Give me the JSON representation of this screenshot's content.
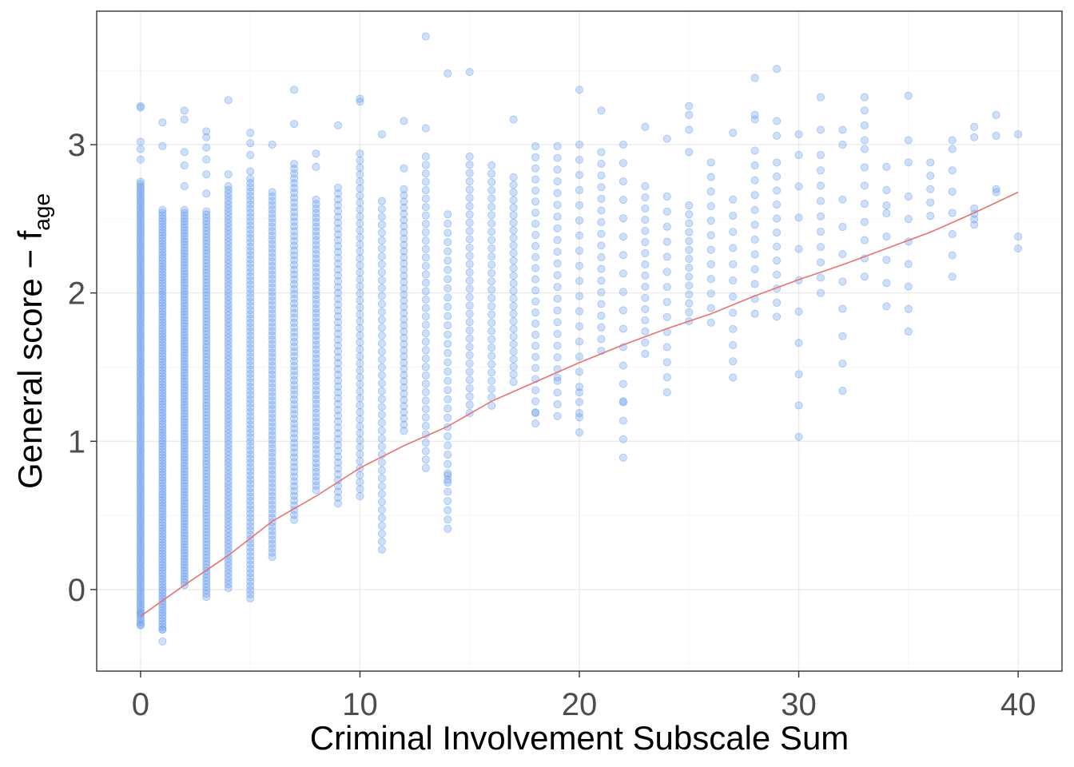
{
  "chart_data": {
    "type": "scatter",
    "xlabel": "Criminal Involvement Subscale Sum",
    "ylabel_main": "General score −  f",
    "ylabel_sub": "age",
    "xlim": [
      -2,
      42
    ],
    "ylim": [
      -0.55,
      3.9
    ],
    "x_ticks": [
      0,
      10,
      20,
      30,
      40
    ],
    "y_ticks": [
      0,
      1,
      2,
      3
    ],
    "x_tick_labels": [
      "0",
      "10",
      "20",
      "30",
      "40"
    ],
    "y_tick_labels": [
      "0",
      "1",
      "2",
      "3"
    ],
    "grid": true,
    "legend": "none",
    "point_color": "#6a9ff0",
    "curve_color": "#e8736c",
    "series": [
      {
        "kind": "points",
        "columns": [
          {
            "x": 0,
            "ymin": -0.24,
            "ymax": 2.75,
            "n": 180,
            "outliers": [
              3.26,
              3.25,
              3.02,
              2.97,
              2.9,
              -0.16,
              -0.24
            ]
          },
          {
            "x": 1,
            "ymin": -0.27,
            "ymax": 2.56,
            "n": 150,
            "outliers": [
              3.15,
              2.99,
              -0.35,
              -0.27
            ]
          },
          {
            "x": 2,
            "ymin": 0.03,
            "ymax": 2.56,
            "n": 130,
            "outliers": [
              3.23,
              3.17,
              2.95,
              2.86,
              2.72
            ]
          },
          {
            "x": 3,
            "ymin": -0.05,
            "ymax": 2.55,
            "n": 120,
            "outliers": [
              3.09,
              3.05,
              2.98,
              2.9,
              2.8,
              2.67
            ]
          },
          {
            "x": 4,
            "ymin": 0.01,
            "ymax": 2.72,
            "n": 110,
            "outliers": [
              3.3,
              2.8
            ]
          },
          {
            "x": 5,
            "ymin": -0.06,
            "ymax": 2.77,
            "n": 100,
            "outliers": [
              3.08,
              3.01,
              2.93,
              2.82
            ]
          },
          {
            "x": 6,
            "ymin": 0.22,
            "ymax": 2.68,
            "n": 85,
            "outliers": [
              3.0
            ]
          },
          {
            "x": 7,
            "ymin": 0.47,
            "ymax": 2.87,
            "n": 75,
            "outliers": [
              3.37,
              3.14
            ]
          },
          {
            "x": 8,
            "ymin": 0.67,
            "ymax": 2.63,
            "n": 65,
            "outliers": [
              2.94,
              2.85
            ]
          },
          {
            "x": 9,
            "ymin": 0.58,
            "ymax": 2.71,
            "n": 55,
            "outliers": [
              3.13
            ]
          },
          {
            "x": 10,
            "ymin": 0.63,
            "ymax": 2.94,
            "n": 50,
            "outliers": [
              3.31,
              3.29
            ]
          },
          {
            "x": 11,
            "ymin": 0.27,
            "ymax": 2.62,
            "n": 45,
            "outliers": [
              3.07
            ]
          },
          {
            "x": 12,
            "ymin": 1.07,
            "ymax": 2.7,
            "n": 40,
            "outliers": [
              3.16,
              2.84
            ]
          },
          {
            "x": 13,
            "ymin": 0.82,
            "ymax": 2.92,
            "n": 38,
            "outliers": [
              3.73,
              3.11
            ]
          },
          {
            "x": 14,
            "ymin": 0.41,
            "ymax": 2.53,
            "n": 35,
            "outliers": [
              3.48,
              0.74,
              0.77
            ]
          },
          {
            "x": 15,
            "ymin": 1.19,
            "ymax": 2.92,
            "n": 32,
            "outliers": [
              3.49
            ]
          },
          {
            "x": 16,
            "ymin": 1.24,
            "ymax": 2.86,
            "n": 30,
            "outliers": []
          },
          {
            "x": 17,
            "ymin": 1.4,
            "ymax": 2.78,
            "n": 28,
            "outliers": [
              3.17
            ]
          },
          {
            "x": 18,
            "ymin": 1.12,
            "ymax": 2.99,
            "n": 26,
            "outliers": [
              1.19
            ]
          },
          {
            "x": 19,
            "ymin": 1.17,
            "ymax": 2.99,
            "n": 24,
            "outliers": [
              1.43
            ]
          },
          {
            "x": 20,
            "ymin": 1.06,
            "ymax": 3.0,
            "n": 20,
            "outliers": [
              3.37,
              1.33,
              1.19
            ]
          },
          {
            "x": 21,
            "ymin": 1.61,
            "ymax": 2.95,
            "n": 18,
            "outliers": [
              3.23
            ]
          },
          {
            "x": 22,
            "ymin": 0.89,
            "ymax": 3.0,
            "n": 18,
            "outliers": [
              1.27
            ]
          },
          {
            "x": 23,
            "ymin": 1.59,
            "ymax": 2.72,
            "n": 16,
            "outliers": [
              3.12
            ]
          },
          {
            "x": 24,
            "ymin": 1.33,
            "ymax": 2.65,
            "n": 14,
            "outliers": [
              3.04
            ]
          },
          {
            "x": 25,
            "ymin": 1.81,
            "ymax": 2.59,
            "n": 14,
            "outliers": [
              3.26,
              3.2,
              3.1,
              2.95
            ]
          },
          {
            "x": 26,
            "ymin": 1.8,
            "ymax": 2.88,
            "n": 12,
            "outliers": []
          },
          {
            "x": 27,
            "ymin": 1.43,
            "ymax": 2.63,
            "n": 12,
            "outliers": [
              3.08
            ]
          },
          {
            "x": 28,
            "ymin": 1.86,
            "ymax": 2.96,
            "n": 12,
            "outliers": [
              3.45,
              3.2,
              3.17
            ]
          },
          {
            "x": 29,
            "ymin": 1.84,
            "ymax": 2.88,
            "n": 12,
            "outliers": [
              3.51,
              3.16,
              3.06
            ]
          },
          {
            "x": 30,
            "ymin": 1.03,
            "ymax": 2.93,
            "n": 10,
            "outliers": [
              3.07
            ]
          },
          {
            "x": 31,
            "ymin": 2.0,
            "ymax": 2.93,
            "n": 10,
            "outliers": [
              3.32,
              3.1
            ]
          },
          {
            "x": 32,
            "ymin": 1.34,
            "ymax": 2.63,
            "n": 8,
            "outliers": [
              3.1,
              3.0
            ]
          },
          {
            "x": 33,
            "ymin": 2.11,
            "ymax": 2.97,
            "n": 8,
            "outliers": [
              3.32,
              3.23,
              3.13,
              3.03
            ]
          },
          {
            "x": 34,
            "ymin": 1.91,
            "ymax": 2.85,
            "n": 7,
            "outliers": [
              2.59
            ]
          },
          {
            "x": 35,
            "ymin": 1.74,
            "ymax": 2.65,
            "n": 7,
            "outliers": [
              3.33,
              3.03,
              2.88
            ]
          },
          {
            "x": 36,
            "ymin": 2.52,
            "ymax": 2.88,
            "n": 5,
            "outliers": []
          },
          {
            "x": 37,
            "ymin": 2.11,
            "ymax": 2.97,
            "n": 7,
            "outliers": [
              3.03
            ]
          },
          {
            "x": 38,
            "ymin": 2.46,
            "ymax": 2.57,
            "n": 4,
            "outliers": [
              3.12,
              3.05
            ]
          },
          {
            "x": 39,
            "ymin": 2.68,
            "ymax": 2.7,
            "n": 2,
            "outliers": [
              3.2,
              3.06
            ]
          },
          {
            "x": 40,
            "ymin": 2.3,
            "ymax": 2.38,
            "n": 2,
            "outliers": [
              3.07
            ]
          }
        ]
      },
      {
        "kind": "curve",
        "x": [
          0,
          2,
          4,
          6,
          8,
          10,
          12,
          14,
          16,
          18,
          20,
          22,
          24,
          26,
          28,
          30,
          32,
          34,
          36,
          38,
          40
        ],
        "y": [
          -0.18,
          0.03,
          0.23,
          0.46,
          0.63,
          0.82,
          0.97,
          1.1,
          1.27,
          1.4,
          1.53,
          1.65,
          1.76,
          1.86,
          1.98,
          2.09,
          2.19,
          2.3,
          2.41,
          2.54,
          2.68
        ]
      }
    ]
  }
}
